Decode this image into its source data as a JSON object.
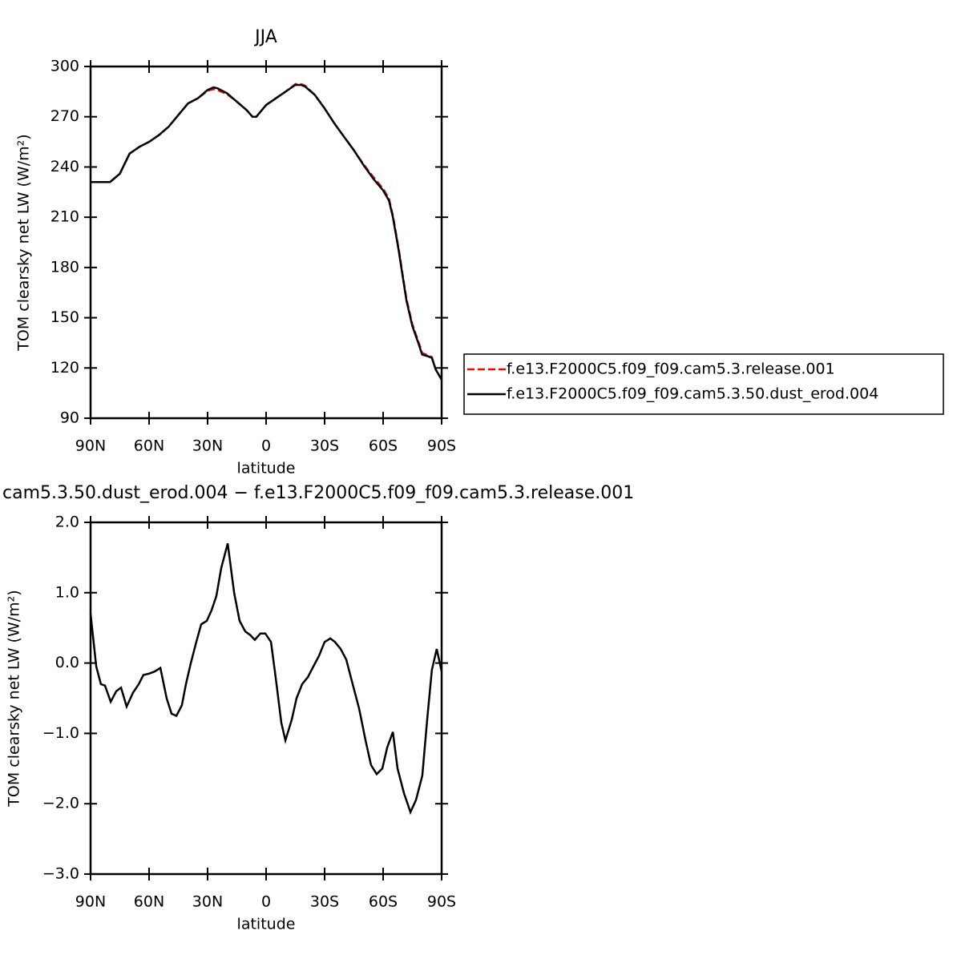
{
  "chart_data": [
    {
      "type": "line",
      "title": "JJA",
      "xlabel": "latitude",
      "ylabel": "TOM clearsky net LW (W/m²)",
      "xlim": [
        90,
        -90
      ],
      "xticks": [
        {
          "value": 90,
          "label": "90N"
        },
        {
          "value": 60,
          "label": "60N"
        },
        {
          "value": 30,
          "label": "30N"
        },
        0,
        {
          "value": -30,
          "label": "30S"
        },
        {
          "value": -60,
          "label": "60S"
        },
        {
          "value": -90,
          "label": "90S"
        }
      ],
      "ylim": [
        90,
        300
      ],
      "yticks": [
        90,
        120,
        150,
        180,
        210,
        240,
        270,
        300
      ],
      "legend": "right",
      "x": [
        90,
        85,
        80,
        75,
        70,
        65,
        60,
        55,
        50,
        45,
        40,
        35,
        30,
        27,
        25,
        20,
        15,
        10,
        7,
        5,
        0,
        -5,
        -10,
        -15,
        -18,
        -20,
        -25,
        -30,
        -35,
        -40,
        -45,
        -50,
        -55,
        -60,
        -63,
        -65,
        -68,
        -70,
        -72,
        -75,
        -78,
        -80,
        -83,
        -85,
        -87,
        -90
      ],
      "series": [
        {
          "name": "f.e13.F2000C5.f09_f09.cam5.3.release.001",
          "color": "#ff0000",
          "dashed": true,
          "values": [
            231,
            231,
            231,
            236,
            248,
            252,
            255,
            259,
            264,
            271,
            278,
            281,
            285.5,
            286.5,
            286,
            283.5,
            279,
            274,
            270,
            270,
            277,
            281,
            285,
            289.5,
            289.5,
            288.5,
            283,
            275,
            266,
            258,
            250,
            241.5,
            234,
            227,
            221,
            211,
            191,
            176,
            161,
            146,
            136,
            129,
            127.5,
            126.5,
            119,
            113
          ]
        },
        {
          "name": "f.e13.F2000C5.f09_f09.cam5.3.50.dust_erod.004",
          "color": "#000000",
          "dashed": false,
          "values": [
            231,
            231,
            231,
            236,
            248,
            252,
            255,
            259,
            264,
            271,
            278,
            281,
            286,
            287.5,
            287,
            284,
            279,
            274,
            270,
            270,
            277,
            281,
            285,
            289,
            289,
            288,
            283,
            275,
            266,
            258,
            250,
            241,
            233,
            226,
            220,
            210,
            190,
            175,
            160,
            145,
            135,
            128,
            127,
            126,
            119,
            113
          ]
        }
      ]
    },
    {
      "type": "line",
      "title": "cam5.3.50.dust_erod.004 − f.e13.F2000C5.f09_f09.cam5.3.release.001",
      "xlabel": "latitude",
      "ylabel": "TOM clearsky net LW (W/m²)",
      "xlim": [
        90,
        -90
      ],
      "xticks": [
        {
          "value": 90,
          "label": "90N"
        },
        {
          "value": 60,
          "label": "60N"
        },
        {
          "value": 30,
          "label": "30N"
        },
        0,
        {
          "value": -30,
          "label": "30S"
        },
        {
          "value": -60,
          "label": "60S"
        },
        {
          "value": -90,
          "label": "90S"
        }
      ],
      "ylim": [
        -3,
        2
      ],
      "yticks": [
        {
          "value": -3,
          "label": "−3.0"
        },
        {
          "value": -2,
          "label": "−2.0"
        },
        {
          "value": -1,
          "label": "−1.0"
        },
        {
          "value": 0,
          "label": "0.0"
        },
        {
          "value": 1,
          "label": "1.0"
        },
        {
          "value": 2,
          "label": "2.0"
        }
      ],
      "x": [
        90,
        87.1,
        84.7,
        82.6,
        79.7,
        76.8,
        74.4,
        71.5,
        68.2,
        65.3,
        62.9,
        60,
        57.1,
        54.2,
        51,
        48.5,
        46,
        43.2,
        41.1,
        38.6,
        35.8,
        33.3,
        30.4,
        28,
        25.5,
        23,
        19.7,
        16.4,
        13.6,
        10.7,
        8.2,
        5.8,
        2.9,
        0.4,
        -2.5,
        -4.9,
        -7.8,
        -9.9,
        -13.2,
        -15.6,
        -18.5,
        -21.4,
        -24.2,
        -27.1,
        -30,
        -32.9,
        -35.3,
        -38.2,
        -41.1,
        -44.4,
        -47.7,
        -51,
        -53.8,
        -56.7,
        -59.6,
        -62.1,
        -65,
        -67.4,
        -70.7,
        -74,
        -76.8,
        -80.1,
        -82.6,
        -85,
        -87.5,
        -90
      ],
      "series": [
        {
          "color": "#000000",
          "dashed": false,
          "values": [
            0.7,
            -0.05,
            -0.3,
            -0.32,
            -0.55,
            -0.4,
            -0.35,
            -0.62,
            -0.42,
            -0.3,
            -0.17,
            -0.15,
            -0.12,
            -0.07,
            -0.5,
            -0.72,
            -0.75,
            -0.6,
            -0.3,
            0.0,
            0.3,
            0.55,
            0.6,
            0.75,
            0.95,
            1.35,
            1.7,
            1.0,
            0.6,
            0.45,
            0.4,
            0.33,
            0.42,
            0.42,
            0.3,
            -0.2,
            -0.85,
            -1.1,
            -0.8,
            -0.5,
            -0.3,
            -0.2,
            -0.05,
            0.1,
            0.3,
            0.35,
            0.3,
            0.2,
            0.05,
            -0.3,
            -0.65,
            -1.1,
            -1.45,
            -1.58,
            -1.5,
            -1.2,
            -0.98,
            -1.5,
            -1.85,
            -2.12,
            -1.95,
            -1.6,
            -0.8,
            -0.1,
            0.2,
            -0.12
          ]
        }
      ]
    }
  ]
}
